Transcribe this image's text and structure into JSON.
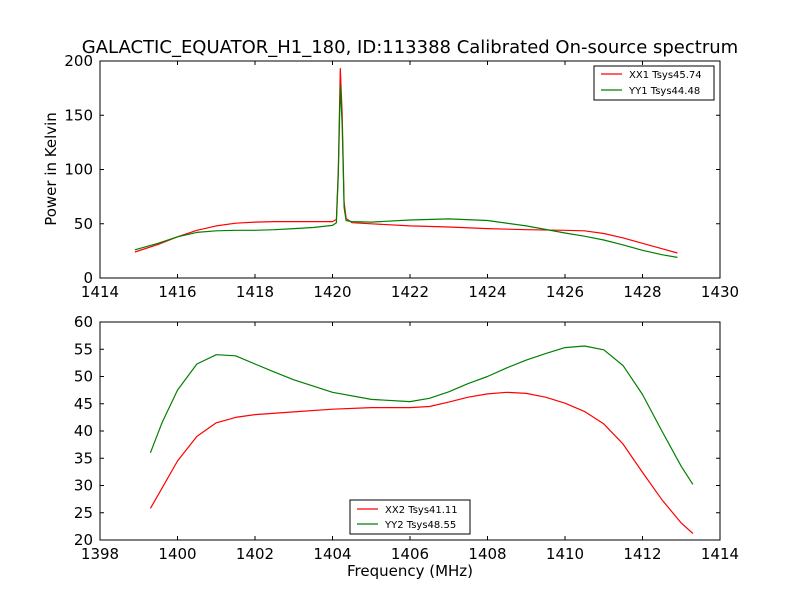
{
  "figure": {
    "title": "GALACTIC_EQUATOR_H1_180, ID:113388 Calibrated On-source spectrum"
  },
  "colors": {
    "red": "#ff0000",
    "green": "#008000"
  },
  "chart_data": [
    {
      "type": "line",
      "xlabel": "",
      "ylabel": "Power in Kelvin",
      "xlim": [
        1414,
        1430
      ],
      "ylim": [
        0,
        200
      ],
      "xticks": [
        1414,
        1416,
        1418,
        1420,
        1422,
        1424,
        1426,
        1428,
        1430
      ],
      "yticks": [
        0,
        50,
        100,
        150,
        200
      ],
      "grid": false,
      "legend_position": "top-right",
      "series": [
        {
          "name": "XX1 Tsys45.74",
          "color": "#ff0000",
          "x": [
            1414.9,
            1415.5,
            1416.0,
            1416.5,
            1417.0,
            1417.5,
            1418.0,
            1418.5,
            1419.0,
            1419.5,
            1420.0,
            1420.1,
            1420.15,
            1420.2,
            1420.25,
            1420.3,
            1420.35,
            1420.5,
            1421.0,
            1422.0,
            1423.0,
            1424.0,
            1425.0,
            1426.0,
            1426.5,
            1427.0,
            1427.5,
            1428.0,
            1428.5,
            1428.9
          ],
          "y": [
            24,
            31,
            38,
            44,
            48,
            50.5,
            51.5,
            52,
            52,
            52,
            52,
            54,
            100,
            193,
            150,
            70,
            55,
            51,
            50,
            48,
            47,
            45.5,
            44.5,
            44,
            43.5,
            41,
            37,
            32,
            27,
            23
          ]
        },
        {
          "name": "YY1 Tsys44.48",
          "color": "#008000",
          "x": [
            1414.9,
            1415.5,
            1416.0,
            1416.5,
            1417.0,
            1417.5,
            1418.0,
            1418.5,
            1419.0,
            1419.5,
            1420.0,
            1420.1,
            1420.15,
            1420.2,
            1420.25,
            1420.3,
            1420.35,
            1420.5,
            1421.0,
            1422.0,
            1423.0,
            1424.0,
            1425.0,
            1426.0,
            1426.5,
            1427.0,
            1427.5,
            1428.0,
            1428.5,
            1428.9
          ],
          "y": [
            26,
            32,
            38,
            42,
            43.5,
            44,
            44,
            44.5,
            45.5,
            46.5,
            48.5,
            51,
            95,
            178,
            140,
            65,
            53,
            52,
            51.5,
            53.5,
            54.5,
            53,
            48,
            41.5,
            38.5,
            35,
            30.5,
            25.5,
            21.5,
            19
          ]
        }
      ]
    },
    {
      "type": "line",
      "xlabel": "Frequency (MHz)",
      "ylabel": "",
      "xlim": [
        1398,
        1414
      ],
      "ylim": [
        20,
        60
      ],
      "xticks": [
        1398,
        1400,
        1402,
        1404,
        1406,
        1408,
        1410,
        1412,
        1414
      ],
      "yticks": [
        20,
        25,
        30,
        35,
        40,
        45,
        50,
        55,
        60
      ],
      "grid": false,
      "legend_position": "bottom-center",
      "series": [
        {
          "name": "XX2 Tsys41.11",
          "color": "#ff0000",
          "x": [
            1399.3,
            1399.6,
            1400.0,
            1400.5,
            1401.0,
            1401.5,
            1402.0,
            1403.0,
            1404.0,
            1405.0,
            1406.0,
            1406.5,
            1407.0,
            1407.5,
            1408.0,
            1408.5,
            1409.0,
            1409.5,
            1410.0,
            1410.5,
            1411.0,
            1411.5,
            1412.0,
            1412.5,
            1413.0,
            1413.3
          ],
          "y": [
            25.8,
            29.5,
            34.5,
            39,
            41.5,
            42.5,
            43,
            43.5,
            44,
            44.3,
            44.3,
            44.5,
            45.3,
            46.2,
            46.8,
            47.1,
            46.9,
            46.2,
            45.1,
            43.6,
            41.3,
            37.6,
            32.4,
            27.4,
            23.1,
            21.2
          ]
        },
        {
          "name": "YY2 Tsys48.55",
          "color": "#008000",
          "x": [
            1399.3,
            1399.6,
            1400.0,
            1400.5,
            1401.0,
            1401.5,
            1402.0,
            1402.5,
            1403.0,
            1404.0,
            1405.0,
            1406.0,
            1406.5,
            1407.0,
            1407.5,
            1408.0,
            1408.5,
            1409.0,
            1409.5,
            1410.0,
            1410.5,
            1411.0,
            1411.5,
            1412.0,
            1412.5,
            1413.0,
            1413.3
          ],
          "y": [
            36,
            41.5,
            47.5,
            52.3,
            54,
            53.8,
            52.3,
            50.8,
            49.4,
            47.1,
            45.8,
            45.4,
            46,
            47.2,
            48.7,
            50,
            51.6,
            53,
            54.2,
            55.3,
            55.6,
            54.9,
            52,
            46.7,
            40,
            33.5,
            30.2
          ]
        }
      ]
    }
  ]
}
